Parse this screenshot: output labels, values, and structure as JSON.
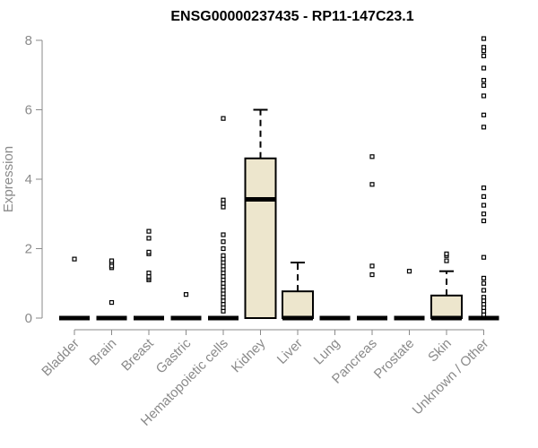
{
  "chart_data": {
    "type": "boxplot",
    "title": "ENSG00000237435 - RP11-147C23.1",
    "xlabel": "",
    "ylabel": "Expression",
    "ylim": [
      0,
      8
    ],
    "yticks": [
      0,
      2,
      4,
      6,
      8
    ],
    "grid": false,
    "legend": "none",
    "box_fill": "#ede6cd",
    "box_stroke": "#000000",
    "axis_color": "#8a8a8a",
    "categories": [
      "Bladder",
      "Brain",
      "Breast",
      "Gastric",
      "Hematopoietic cells",
      "Kidney",
      "Liver",
      "Lung",
      "Pancreas",
      "Prostate",
      "Skin",
      "Unknown / Other"
    ],
    "boxes": [
      {
        "category": "Bladder",
        "q1": 0,
        "median": 0,
        "q3": 0,
        "whisker_low": 0,
        "whisker_high": 0,
        "outliers": [
          1.7
        ]
      },
      {
        "category": "Brain",
        "q1": 0,
        "median": 0,
        "q3": 0,
        "whisker_low": 0,
        "whisker_high": 0,
        "outliers": [
          0.45,
          1.45,
          1.5,
          1.6,
          1.65
        ]
      },
      {
        "category": "Breast",
        "q1": 0,
        "median": 0,
        "q3": 0,
        "whisker_low": 0,
        "whisker_high": 0,
        "outliers": [
          1.1,
          1.15,
          1.2,
          1.3,
          1.85,
          1.9,
          2.3,
          2.5
        ]
      },
      {
        "category": "Gastric",
        "q1": 0,
        "median": 0,
        "q3": 0,
        "whisker_low": 0,
        "whisker_high": 0,
        "outliers": [
          0.68
        ]
      },
      {
        "category": "Hematopoietic cells",
        "q1": 0,
        "median": 0,
        "q3": 0,
        "whisker_low": 0,
        "whisker_high": 0,
        "outliers": [
          0.2,
          0.3,
          0.4,
          0.5,
          0.6,
          0.7,
          0.8,
          0.9,
          1.0,
          1.1,
          1.2,
          1.3,
          1.4,
          1.5,
          1.6,
          1.7,
          1.8,
          2.0,
          2.2,
          2.4,
          3.2,
          3.3,
          3.4,
          5.75
        ]
      },
      {
        "category": "Kidney",
        "q1": 0,
        "median": 3.42,
        "q3": 4.6,
        "whisker_low": 0,
        "whisker_high": 6.0,
        "outliers": []
      },
      {
        "category": "Liver",
        "q1": 0,
        "median": 0,
        "q3": 0.77,
        "whisker_low": 0,
        "whisker_high": 1.6,
        "outliers": []
      },
      {
        "category": "Lung",
        "q1": 0,
        "median": 0,
        "q3": 0,
        "whisker_low": 0,
        "whisker_high": 0,
        "outliers": []
      },
      {
        "category": "Pancreas",
        "q1": 0,
        "median": 0,
        "q3": 0,
        "whisker_low": 0,
        "whisker_high": 0,
        "outliers": [
          1.25,
          1.5,
          3.85,
          4.65
        ]
      },
      {
        "category": "Prostate",
        "q1": 0,
        "median": 0,
        "q3": 0,
        "whisker_low": 0,
        "whisker_high": 0,
        "outliers": [
          1.35
        ]
      },
      {
        "category": "Skin",
        "q1": 0,
        "median": 0,
        "q3": 0.65,
        "whisker_low": 0,
        "whisker_high": 1.35,
        "outliers": [
          1.65,
          1.8,
          1.85
        ]
      },
      {
        "category": "Unknown / Other",
        "q1": 0,
        "median": 0,
        "q3": 0,
        "whisker_low": 0,
        "whisker_high": 0,
        "outliers": [
          0.1,
          0.2,
          0.3,
          0.4,
          0.5,
          0.6,
          0.8,
          1.0,
          1.15,
          1.75,
          2.8,
          3.0,
          3.25,
          3.5,
          3.75,
          5.5,
          5.85,
          6.4,
          6.7,
          6.85,
          7.2,
          7.55,
          7.7,
          7.8,
          8.05
        ]
      }
    ]
  }
}
